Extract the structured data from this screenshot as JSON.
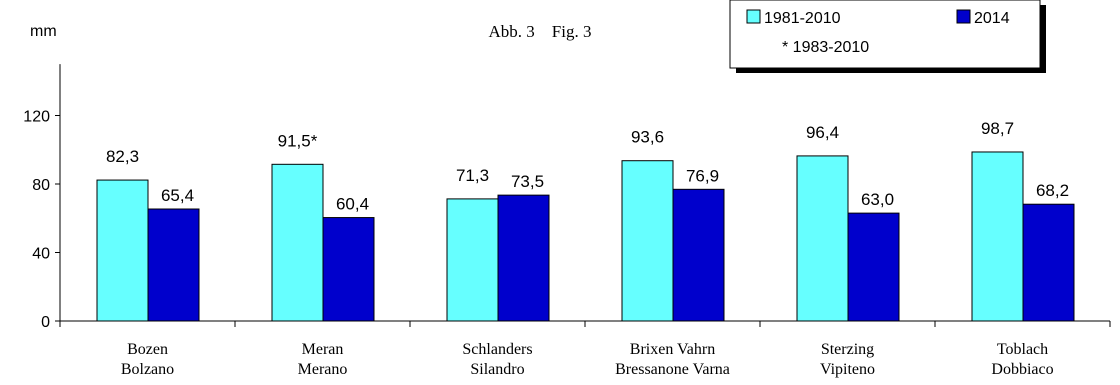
{
  "chart_data": {
    "type": "bar",
    "title": "Abb. 3    Fig. 3",
    "ylabel": "mm",
    "ylim": [
      0,
      150
    ],
    "yticks": [
      0,
      40,
      80,
      120
    ],
    "grid": false,
    "legend_position": "top-right",
    "legend_note": "* 1983-2010",
    "categories": [
      [
        "Bozen",
        "Bolzano"
      ],
      [
        "Meran",
        "Merano"
      ],
      [
        "Schlanders",
        "Silandro"
      ],
      [
        "Brixen Vahrn",
        "Bressanone Varna"
      ],
      [
        "Sterzing",
        "Vipiteno"
      ],
      [
        "Toblach",
        "Dobbiaco"
      ]
    ],
    "series": [
      {
        "name": "1981-2010",
        "color": "#66ffff",
        "values": [
          82.3,
          91.5,
          71.3,
          93.6,
          96.4,
          98.7
        ],
        "labels": [
          "82,3",
          "91,5*",
          "71,3",
          "93,6",
          "96,4",
          "98,7"
        ]
      },
      {
        "name": "2014",
        "color": "#0000cc",
        "values": [
          65.4,
          60.4,
          73.5,
          76.9,
          63.0,
          68.2
        ],
        "labels": [
          "65,4",
          "60,4",
          "73,5",
          "76,9",
          "63,0",
          "68,2"
        ]
      }
    ]
  }
}
